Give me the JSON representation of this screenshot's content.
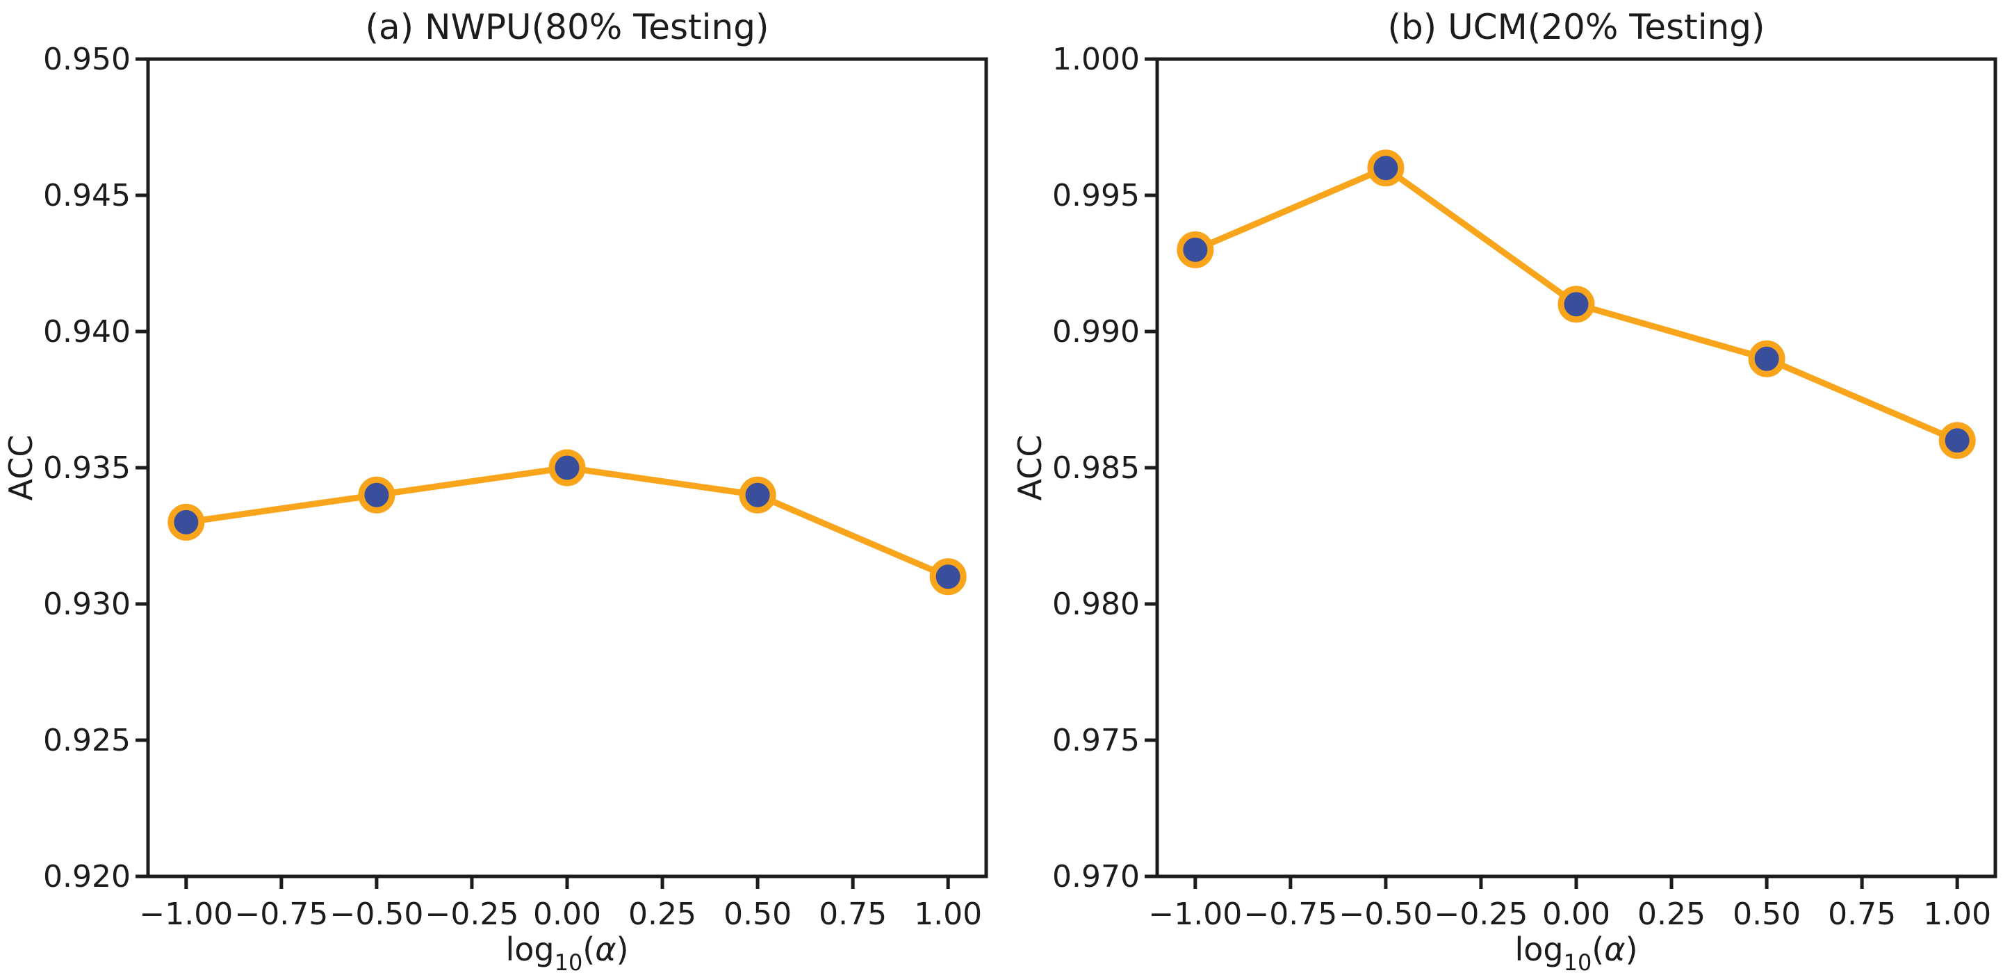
{
  "page": {
    "background_color": "#ffffff",
    "axis_color": "#1c1c1c",
    "text_color": "#1c1c1c"
  },
  "chart_data": [
    {
      "type": "line",
      "panel": "a",
      "title": "(a) NWPU(80% Testing)",
      "ylabel": "ACC",
      "xlabel": {
        "base": "log",
        "sub": "10",
        "open": "(",
        "symbol": "α",
        "close": ")"
      },
      "x": [
        -1.0,
        -0.5,
        0.0,
        0.5,
        1.0
      ],
      "values": [
        0.933,
        0.934,
        0.935,
        0.934,
        0.931
      ],
      "xlim": [
        -1.1,
        1.1
      ],
      "ylim": [
        0.92,
        0.95
      ],
      "xtick_values": [
        -1.0,
        -0.75,
        -0.5,
        -0.25,
        0.0,
        0.25,
        0.5,
        0.75,
        1.0
      ],
      "xtick_labels": [
        "−1.00",
        "−0.75",
        "−0.50",
        "−0.25",
        "0.00",
        "0.25",
        "0.50",
        "0.75",
        "1.00"
      ],
      "ytick_values": [
        0.95,
        0.945,
        0.94,
        0.935,
        0.93,
        0.925,
        0.92
      ],
      "ytick_labels": [
        "0.950",
        "0.945",
        "0.940",
        "0.935",
        "0.930",
        "0.925",
        "0.920"
      ],
      "grid": false,
      "legend": null,
      "line_color": "#f9a51c",
      "marker_face_color": "#3a4f9b",
      "marker_edge_color": "#f9a51c"
    },
    {
      "type": "line",
      "panel": "b",
      "title": "(b) UCM(20% Testing)",
      "ylabel": "ACC",
      "xlabel": {
        "base": "log",
        "sub": "10",
        "open": "(",
        "symbol": "α",
        "close": ")"
      },
      "x": [
        -1.0,
        -0.5,
        0.0,
        0.5,
        1.0
      ],
      "values": [
        0.993,
        0.996,
        0.991,
        0.989,
        0.986
      ],
      "xlim": [
        -1.1,
        1.1
      ],
      "ylim": [
        0.97,
        1.0
      ],
      "xtick_values": [
        -1.0,
        -0.75,
        -0.5,
        -0.25,
        0.0,
        0.25,
        0.5,
        0.75,
        1.0
      ],
      "xtick_labels": [
        "−1.00",
        "−0.75",
        "−0.50",
        "−0.25",
        "0.00",
        "0.25",
        "0.50",
        "0.75",
        "1.00"
      ],
      "ytick_values": [
        1.0,
        0.995,
        0.99,
        0.985,
        0.98,
        0.975,
        0.97
      ],
      "ytick_labels": [
        "1.000",
        "0.995",
        "0.990",
        "0.985",
        "0.980",
        "0.975",
        "0.970"
      ],
      "grid": false,
      "legend": null,
      "line_color": "#f9a51c",
      "marker_face_color": "#3a4f9b",
      "marker_edge_color": "#f9a51c"
    }
  ]
}
